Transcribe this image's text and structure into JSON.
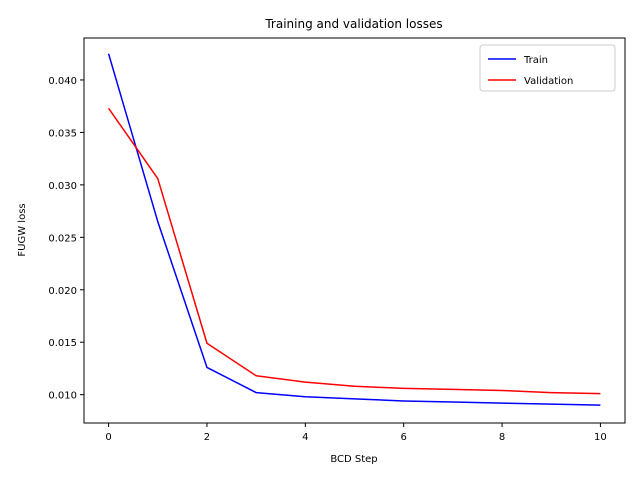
{
  "chart_data": {
    "type": "line",
    "title": "Training and validation losses",
    "xlabel": "BCD Step",
    "ylabel": "FUGW loss",
    "xlim": [
      -0.5,
      10.5
    ],
    "ylim": [
      0.0073,
      0.044
    ],
    "xticks": [
      0,
      2,
      4,
      6,
      8,
      10
    ],
    "xtick_labels": [
      "0",
      "2",
      "4",
      "6",
      "8",
      "10"
    ],
    "yticks": [
      0.01,
      0.015,
      0.02,
      0.025,
      0.03,
      0.035,
      0.04
    ],
    "ytick_labels": [
      "0.010",
      "0.015",
      "0.020",
      "0.025",
      "0.030",
      "0.035",
      "0.040"
    ],
    "grid": false,
    "legend_position": "top-right",
    "x": [
      0,
      1,
      2,
      3,
      4,
      5,
      6,
      7,
      8,
      9,
      10
    ],
    "series": [
      {
        "name": "Train",
        "color": "#0000ff",
        "values": [
          0.0425,
          0.0265,
          0.0126,
          0.0102,
          0.0098,
          0.0096,
          0.0094,
          0.0093,
          0.0092,
          0.0091,
          0.009
        ]
      },
      {
        "name": "Validation",
        "color": "#ff0000",
        "values": [
          0.0373,
          0.0306,
          0.0149,
          0.0118,
          0.0112,
          0.0108,
          0.0106,
          0.0105,
          0.0104,
          0.0102,
          0.0101
        ]
      }
    ]
  }
}
